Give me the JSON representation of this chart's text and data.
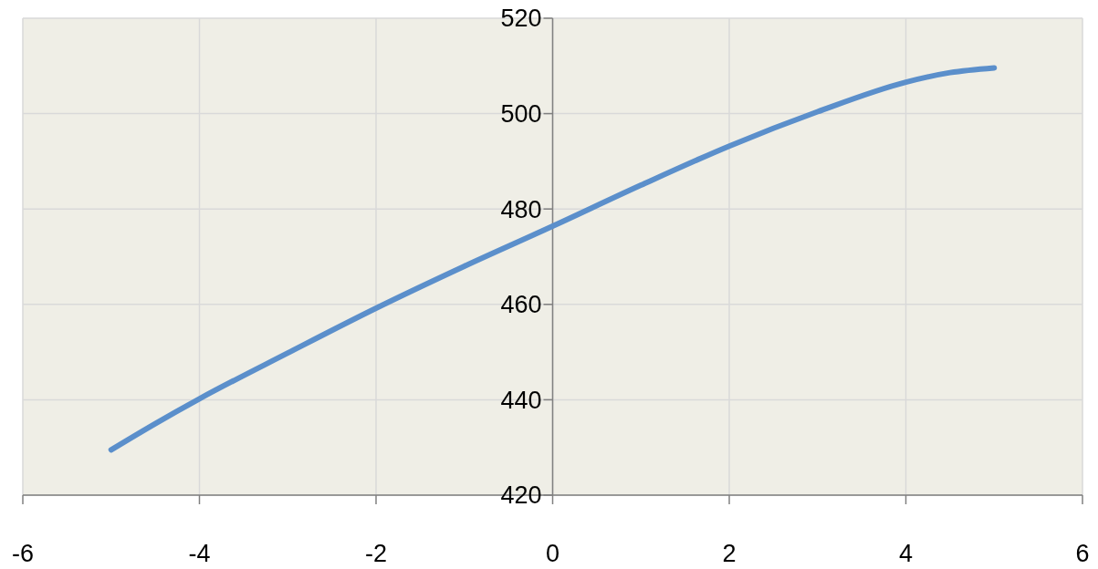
{
  "chart_data": {
    "type": "line",
    "x": [
      -5,
      -4.5,
      -4,
      -3,
      -2,
      -1,
      0,
      1,
      2,
      3,
      4,
      4.5,
      5
    ],
    "series": [
      {
        "color": "#5b8fcb",
        "values": [
          429.5,
          435,
          440.2,
          449.8,
          459.2,
          468,
          476.4,
          485,
          493.2,
          500.4,
          506.6,
          508.6,
          509.6
        ]
      }
    ],
    "xlim": [
      -6,
      6
    ],
    "xticks": [
      -6,
      -4,
      -2,
      0,
      2,
      4,
      6
    ],
    "ylim": [
      420,
      520
    ],
    "yticks": [
      420,
      440,
      460,
      480,
      500,
      520
    ],
    "grid": true,
    "marker": "none",
    "line_style": "solid"
  }
}
